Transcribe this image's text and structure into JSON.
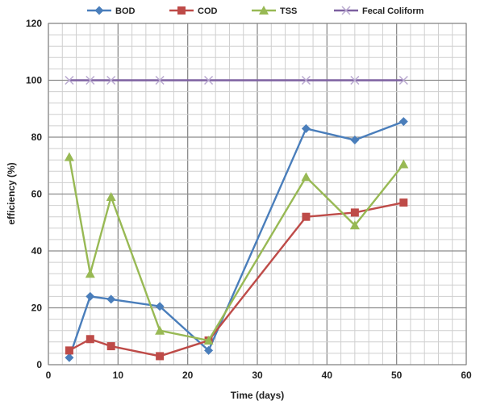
{
  "chart_data": {
    "type": "line",
    "xlabel": "Time (days)",
    "ylabel": "efficiency (%)",
    "xlim": [
      0,
      60
    ],
    "ylim": [
      0,
      120
    ],
    "x_ticks": [
      0,
      10,
      20,
      30,
      40,
      50,
      60
    ],
    "y_ticks": [
      0,
      20,
      40,
      60,
      80,
      100,
      120
    ],
    "grid": true,
    "legend_position": "top",
    "series": [
      {
        "name": "BOD",
        "color": "#4a7ebb",
        "marker": "diamond",
        "x": [
          3,
          6,
          9,
          16,
          23,
          37,
          44,
          51
        ],
        "y": [
          2.5,
          24,
          23,
          20.5,
          5,
          83,
          79,
          85.5
        ]
      },
      {
        "name": "COD",
        "color": "#be4b48",
        "marker": "square",
        "x": [
          3,
          6,
          9,
          16,
          23,
          37,
          44,
          51
        ],
        "y": [
          5,
          9,
          6.5,
          3,
          8.5,
          52,
          53.5,
          57
        ]
      },
      {
        "name": "TSS",
        "color": "#98b954",
        "marker": "triangle",
        "x": [
          3,
          6,
          9,
          16,
          23,
          37,
          44,
          51
        ],
        "y": [
          73,
          32,
          59,
          12,
          8.5,
          66,
          49,
          70.5
        ]
      },
      {
        "name": "Fecal Coliform",
        "color": "#7d60a0",
        "marker": "cross",
        "x": [
          3,
          6,
          9,
          16,
          23,
          37,
          44,
          51
        ],
        "y": [
          100,
          100,
          100,
          100,
          100,
          100,
          100,
          100
        ]
      }
    ]
  }
}
